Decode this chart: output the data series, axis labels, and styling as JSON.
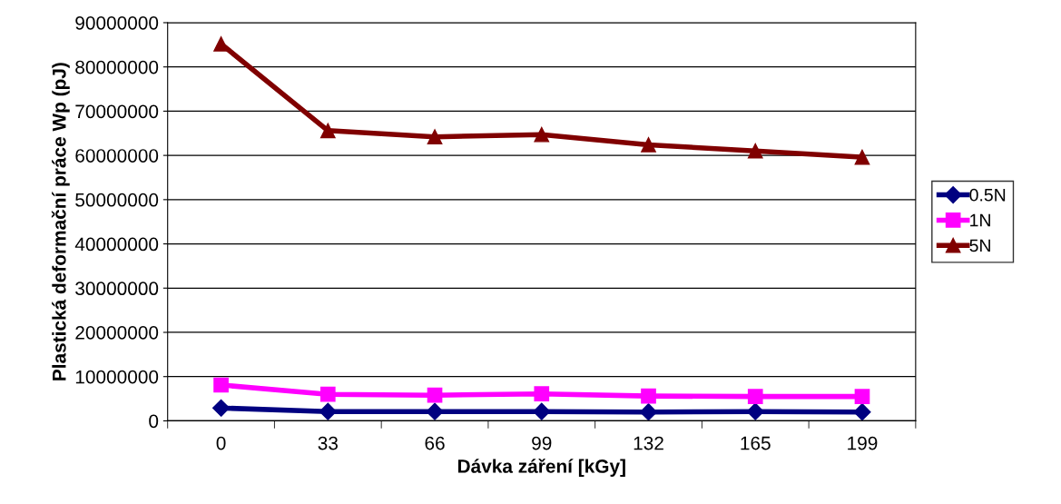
{
  "chart_data": {
    "type": "line",
    "xlabel": "Dávka záření [kGy]",
    "ylabel": "Plastická deformační práce Wp (pJ)",
    "categories": [
      "0",
      "33",
      "66",
      "99",
      "132",
      "165",
      "199"
    ],
    "series": [
      {
        "name": "0.5N",
        "color": "#000080",
        "marker": "diamond",
        "values": [
          2900000,
          2100000,
          2100000,
          2100000,
          2000000,
          2100000,
          2000000
        ]
      },
      {
        "name": "1N",
        "color": "#ff00ff",
        "marker": "square",
        "values": [
          8100000,
          6000000,
          5800000,
          6100000,
          5600000,
          5500000,
          5500000
        ]
      },
      {
        "name": "5N",
        "color": "#800000",
        "marker": "triangle",
        "values": [
          85200000,
          65600000,
          64200000,
          64700000,
          62400000,
          61000000,
          59600000
        ]
      }
    ],
    "ylim": [
      0,
      90000000
    ],
    "yticks": [
      0,
      10000000,
      20000000,
      30000000,
      40000000,
      50000000,
      60000000,
      70000000,
      80000000,
      90000000
    ],
    "grid": "y",
    "legend": "right"
  }
}
